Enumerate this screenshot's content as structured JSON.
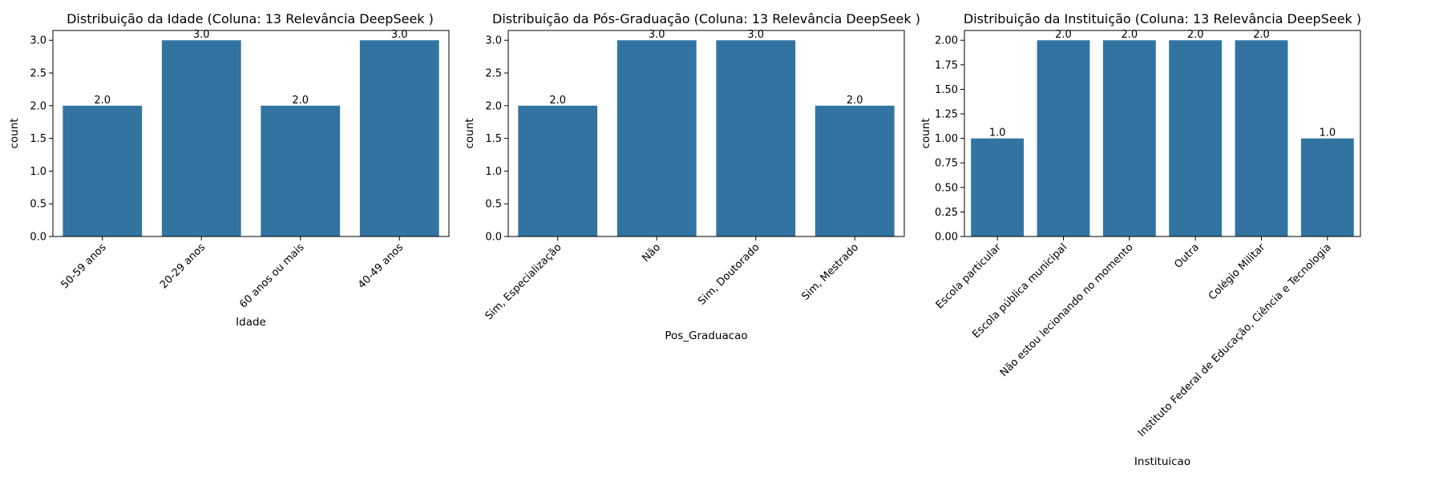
{
  "chart_data": [
    {
      "type": "bar",
      "title": "Distribuição da Idade (Coluna: 13 Relevância DeepSeek )",
      "xlabel": "Idade",
      "ylabel": "count",
      "categories": [
        "50-59 anos",
        "20-29 anos",
        "60 anos ou mais",
        "40-49 anos"
      ],
      "values": [
        2,
        3,
        2,
        3
      ],
      "data_labels": [
        "2.0",
        "3.0",
        "2.0",
        "3.0"
      ],
      "ylim": [
        0,
        3.15
      ],
      "yticks": [
        "0.0",
        "0.5",
        "1.0",
        "1.5",
        "2.0",
        "2.5",
        "3.0"
      ],
      "bar_color": "#3274a1"
    },
    {
      "type": "bar",
      "title": "Distribuição da Pós-Graduação (Coluna: 13 Relevância DeepSeek )",
      "xlabel": "Pos_Graduacao",
      "ylabel": "count",
      "categories": [
        "Sim, Especialização",
        "Não",
        "Sim, Doutorado",
        "Sim, Mestrado"
      ],
      "values": [
        2,
        3,
        3,
        2
      ],
      "data_labels": [
        "2.0",
        "3.0",
        "3.0",
        "2.0"
      ],
      "ylim": [
        0,
        3.15
      ],
      "yticks": [
        "0.0",
        "0.5",
        "1.0",
        "1.5",
        "2.0",
        "2.5",
        "3.0"
      ],
      "bar_color": "#3274a1"
    },
    {
      "type": "bar",
      "title": "Distribuição da Instituição (Coluna: 13 Relevância DeepSeek )",
      "xlabel": "Instituicao",
      "ylabel": "count",
      "categories": [
        "Escola particular",
        "Escola pública municipal",
        "Não estou lecionando no momento",
        "Outra",
        "Colégio Militar",
        "Instituto Federal de Educação, Ciência e Tecnologia"
      ],
      "values": [
        1,
        2,
        2,
        2,
        2,
        1
      ],
      "data_labels": [
        "1.0",
        "2.0",
        "2.0",
        "2.0",
        "2.0",
        "1.0"
      ],
      "ylim": [
        0,
        2.1
      ],
      "yticks": [
        "0.00",
        "0.25",
        "0.50",
        "0.75",
        "1.00",
        "1.25",
        "1.50",
        "1.75",
        "2.00"
      ],
      "bar_color": "#3274a1"
    }
  ]
}
